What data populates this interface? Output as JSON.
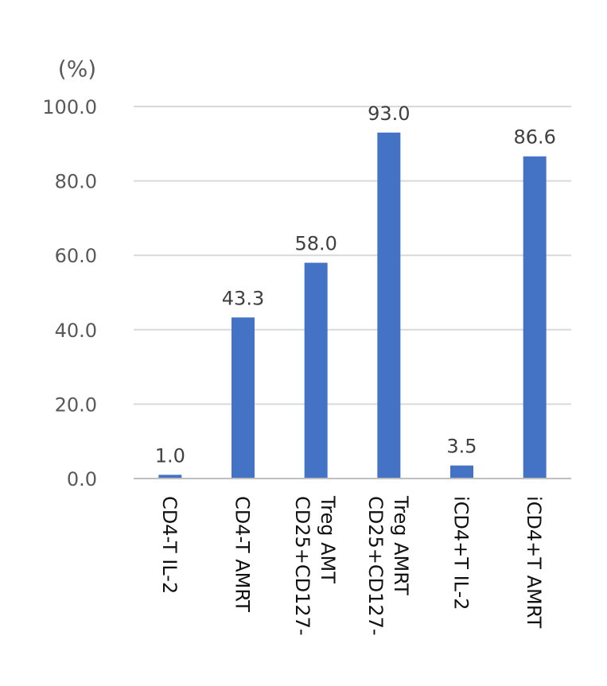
{
  "chart_data": {
    "type": "bar",
    "title": "",
    "xlabel": "",
    "ylabel": "(%)",
    "ylim": [
      0,
      100
    ],
    "yticks": [
      "0.0",
      "20.0",
      "40.0",
      "60.0",
      "80.0",
      "100.0"
    ],
    "ytick_values": [
      0,
      20,
      40,
      60,
      80,
      100
    ],
    "grid": true,
    "legend": false,
    "bar_color": "#4472C4",
    "categories": [
      [
        "CD4-T IL-2"
      ],
      [
        "CD4-T AMRT"
      ],
      [
        "CD25+CD127-",
        "Treg AMT"
      ],
      [
        "CD25+CD127-",
        "Treg AMRT"
      ],
      [
        "iCD4+T IL-2"
      ],
      [
        "iCD4+T AMRT"
      ]
    ],
    "values": [
      1.0,
      43.3,
      58.0,
      93.0,
      3.5,
      86.6
    ],
    "value_labels": [
      "1.0",
      "43.3",
      "58.0",
      "93.0",
      "3.5",
      "86.6"
    ]
  }
}
